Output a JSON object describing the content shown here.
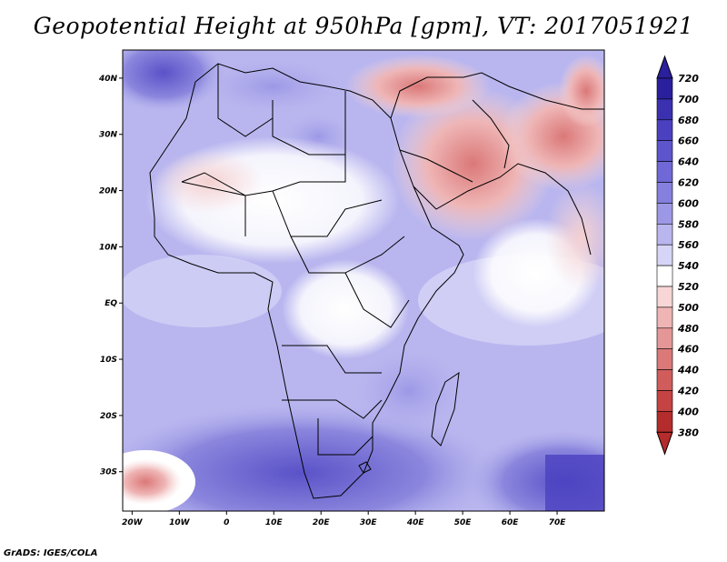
{
  "title": "Geopotential Height at 950hPa [gpm], VT: 2017051921",
  "footer": "GrADS: IGES/COLA",
  "map": {
    "variable": "Geopotential Height",
    "level": "950hPa",
    "units": "gpm",
    "valid_time": "2017051921",
    "lon_range": [
      -22,
      80
    ],
    "lat_range": [
      -37,
      45
    ],
    "lat_labels": [
      {
        "value": 40,
        "text": "40N"
      },
      {
        "value": 30,
        "text": "30N"
      },
      {
        "value": 20,
        "text": "20N"
      },
      {
        "value": 10,
        "text": "10N"
      },
      {
        "value": 0,
        "text": "EQ"
      },
      {
        "value": -10,
        "text": "10S"
      },
      {
        "value": -20,
        "text": "20S"
      },
      {
        "value": -30,
        "text": "30S"
      }
    ],
    "lon_labels": [
      {
        "value": -20,
        "text": "20W"
      },
      {
        "value": -10,
        "text": "10W"
      },
      {
        "value": 0,
        "text": "0"
      },
      {
        "value": 10,
        "text": "10E"
      },
      {
        "value": 20,
        "text": "20E"
      },
      {
        "value": 30,
        "text": "30E"
      },
      {
        "value": 40,
        "text": "40E"
      },
      {
        "value": 50,
        "text": "50E"
      },
      {
        "value": 60,
        "text": "60E"
      },
      {
        "value": 70,
        "text": "70E"
      }
    ]
  },
  "colorbar": {
    "labels": [
      "720",
      "700",
      "680",
      "660",
      "640",
      "620",
      "600",
      "580",
      "560",
      "540",
      "520",
      "500",
      "480",
      "460",
      "440",
      "420",
      "400",
      "380"
    ],
    "colors": [
      "#2a1f9c",
      "#3a30b0",
      "#4b41c0",
      "#5d55cc",
      "#6f68d6",
      "#8580de",
      "#9d98e6",
      "#b9b6ef",
      "#d6d5f6",
      "#ffffff",
      "#f7d6d6",
      "#efb5b5",
      "#e59797",
      "#db7878",
      "#d05c5c",
      "#c54343",
      "#b52c2c"
    ]
  }
}
